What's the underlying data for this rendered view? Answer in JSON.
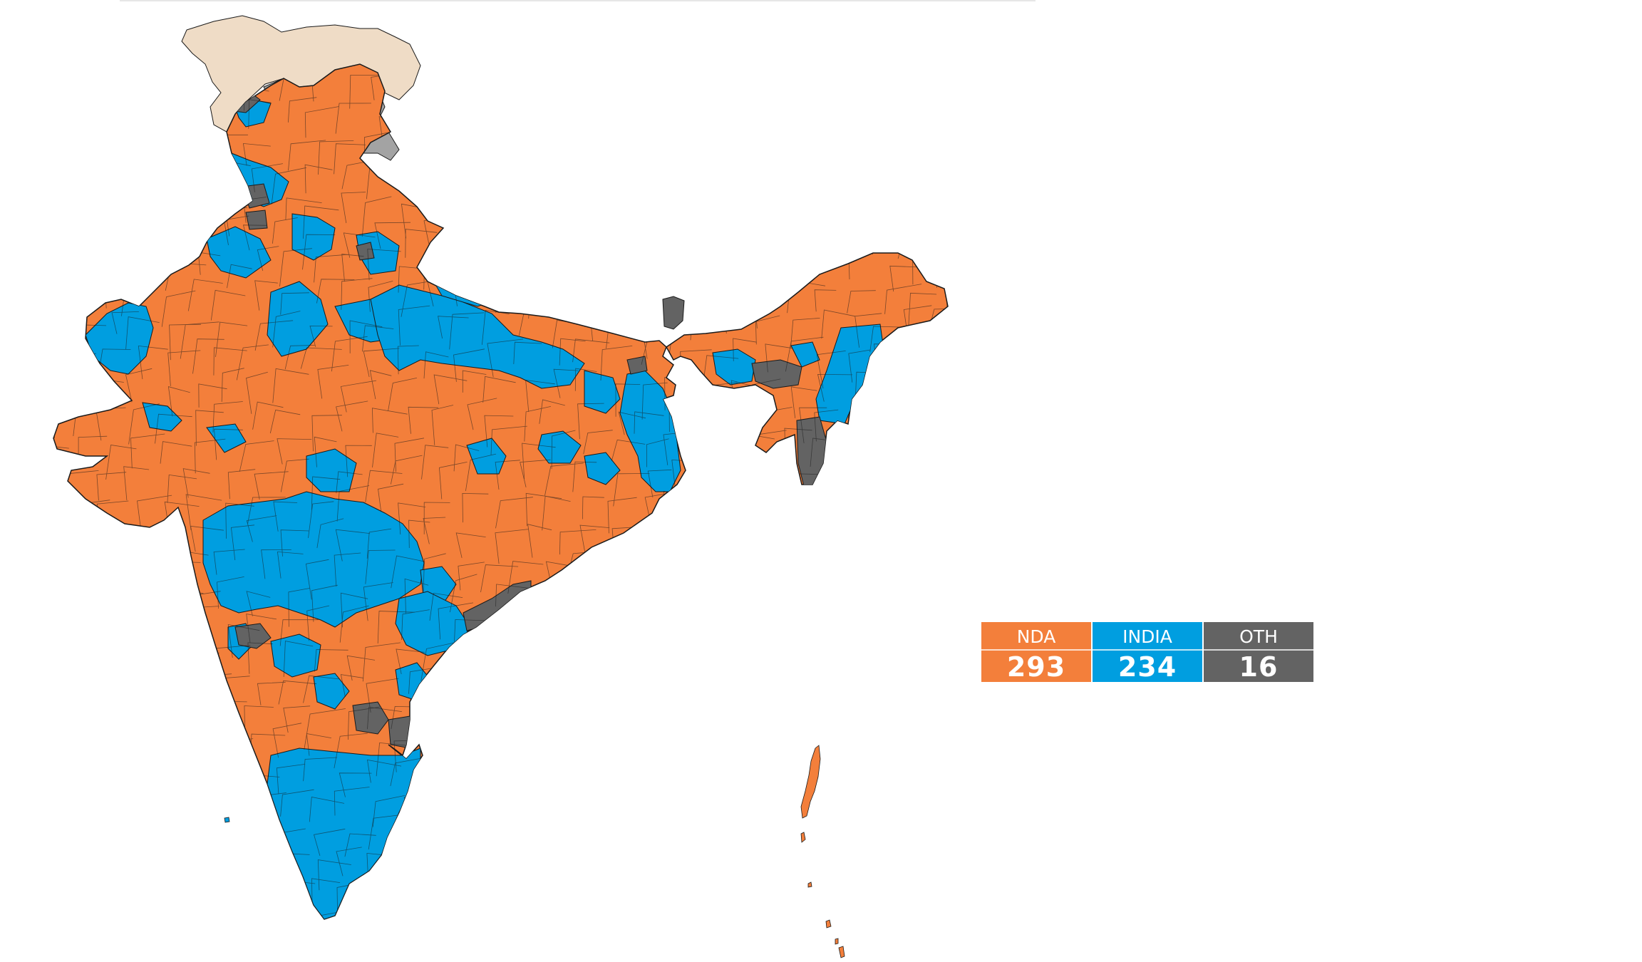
{
  "map": {
    "colors": {
      "nda": "#f37f3b",
      "india": "#009ee0",
      "others": "#636363",
      "pok": "#efdcc6",
      "aksai_chin": "#a3a3a3",
      "boundary": "#1a1a1a"
    },
    "legend": [
      {
        "key": "nda",
        "label": "NDA",
        "count": "293",
        "color": "#f37f3b"
      },
      {
        "key": "india",
        "label": "INDIA",
        "count": "234",
        "color": "#009ee0"
      },
      {
        "key": "oth",
        "label": "OTH",
        "count": "16",
        "color": "#636363"
      }
    ]
  }
}
